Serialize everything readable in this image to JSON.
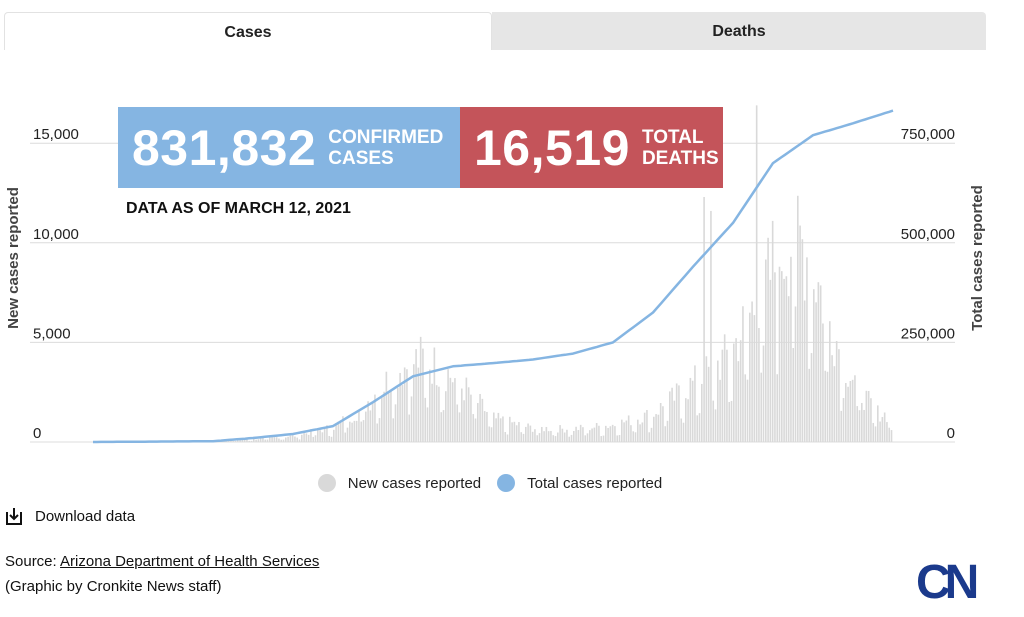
{
  "tabs": [
    {
      "label": "Cases",
      "active": true
    },
    {
      "label": "Deaths",
      "active": false
    }
  ],
  "kpi": {
    "cases": {
      "value": "831,832",
      "label": "CONFIRMED\nCASES",
      "color": "#85b5e2"
    },
    "deaths": {
      "value": "16,519",
      "label": "TOTAL\nDEATHS",
      "color": "#c4545a"
    },
    "as_of": "DATA AS OF MARCH 12, 2021"
  },
  "legend": {
    "new_label": "New cases reported",
    "total_label": "Total cases reported"
  },
  "download": {
    "label": "Download data",
    "icon": "download-icon"
  },
  "source": {
    "prefix": "Source: ",
    "link_text": "Arizona Department of Health Services"
  },
  "credit": "(Graphic by Cronkite News staff)",
  "logo": {
    "text": "CN",
    "color": "#1b3a8c"
  },
  "chart_data": {
    "type": "bar+line",
    "ylabel_left": "New cases reported",
    "ylabel_right": "Total cases reported",
    "y_left": {
      "ticks": [
        0,
        5000,
        10000,
        15000
      ],
      "tick_labels": [
        "0",
        "5,000",
        "10,000",
        "15,000"
      ],
      "max": 16667
    },
    "y_right": {
      "ticks": [
        0,
        250000,
        500000,
        750000
      ],
      "tick_labels": [
        "0",
        "250,000",
        "500,000",
        "750,000"
      ],
      "max": 833333
    },
    "grid": true,
    "colors": {
      "bars": "#d9d9d9",
      "line": "#85b5e2"
    },
    "bar_keyframes": [
      [
        0,
        0
      ],
      [
        0.12,
        20
      ],
      [
        0.15,
        80
      ],
      [
        0.2,
        140
      ],
      [
        0.25,
        300
      ],
      [
        0.3,
        750
      ],
      [
        0.33,
        1500
      ],
      [
        0.36,
        2700
      ],
      [
        0.38,
        3600
      ],
      [
        0.41,
        4200
      ],
      [
        0.44,
        3600
      ],
      [
        0.47,
        2500
      ],
      [
        0.5,
        1200
      ],
      [
        0.55,
        700
      ],
      [
        0.6,
        650
      ],
      [
        0.65,
        850
      ],
      [
        0.7,
        1400
      ],
      [
        0.74,
        2600
      ],
      [
        0.78,
        3800
      ],
      [
        0.8,
        4600
      ],
      [
        0.83,
        7000
      ],
      [
        0.86,
        9300
      ],
      [
        0.88,
        10600
      ],
      [
        0.9,
        9000
      ],
      [
        0.92,
        6400
      ],
      [
        0.94,
        4100
      ],
      [
        0.96,
        2600
      ],
      [
        0.98,
        1500
      ],
      [
        1,
        1300
      ]
    ],
    "bar_spikes": [
      [
        0.765,
        12300
      ],
      [
        0.775,
        11600
      ],
      [
        0.83,
        16900
      ],
      [
        0.851,
        11100
      ],
      [
        0.86,
        8800
      ]
    ],
    "total_keyframes": [
      [
        0,
        0
      ],
      [
        0.15,
        2000
      ],
      [
        0.2,
        10000
      ],
      [
        0.25,
        20000
      ],
      [
        0.3,
        40000
      ],
      [
        0.35,
        100000
      ],
      [
        0.4,
        165000
      ],
      [
        0.45,
        190000
      ],
      [
        0.5,
        198000
      ],
      [
        0.55,
        207000
      ],
      [
        0.6,
        222000
      ],
      [
        0.65,
        250000
      ],
      [
        0.7,
        325000
      ],
      [
        0.75,
        440000
      ],
      [
        0.8,
        550000
      ],
      [
        0.85,
        700000
      ],
      [
        0.9,
        770000
      ],
      [
        0.95,
        800000
      ],
      [
        1,
        831832
      ]
    ],
    "n_days": 350
  }
}
